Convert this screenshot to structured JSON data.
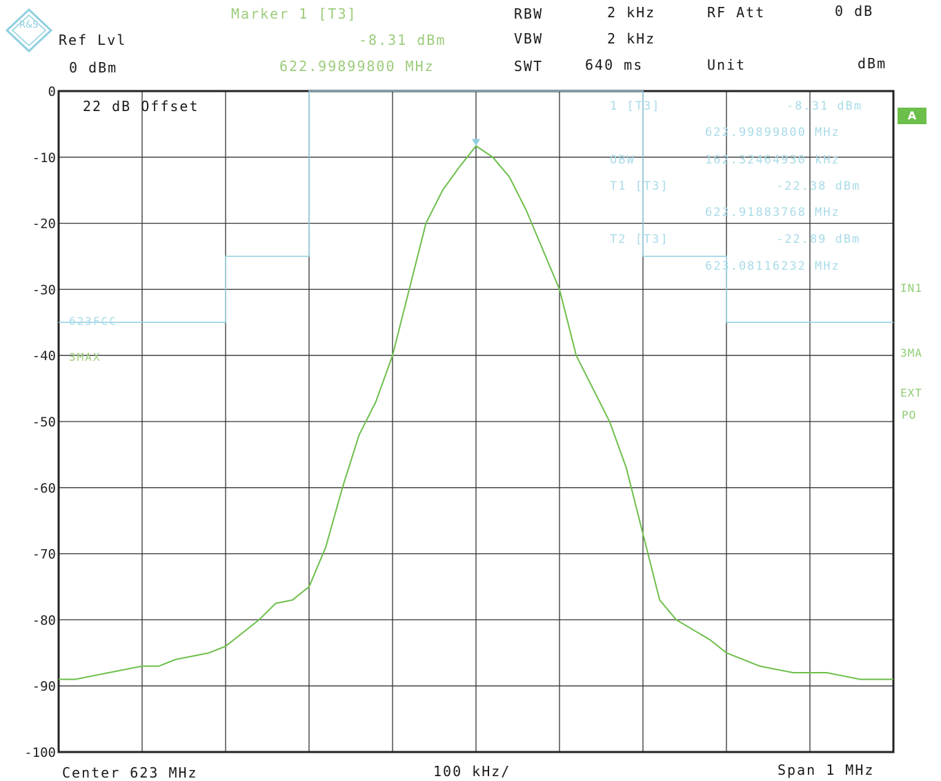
{
  "header": {
    "marker_label": "Marker 1 [T3]",
    "marker_level": "-8.31 dBm",
    "marker_freq": "622.99899800 MHz",
    "ref_lvl_label": "Ref Lvl",
    "ref_lvl_value": "0 dBm",
    "rbw_label": "RBW",
    "rbw_value": "2 kHz",
    "vbw_label": "VBW",
    "vbw_value": "2 kHz",
    "swt_label": "SWT",
    "swt_value": "640 ms",
    "rfatt_label": "RF Att",
    "rfatt_value": "0 dB",
    "unit_label": "Unit",
    "unit_value": "dBm"
  },
  "logo": {
    "letters": "R&S"
  },
  "plot": {
    "offset_text": "22 dB Offset",
    "limit_label": "623FCC",
    "trace_label": "3MAX",
    "marker_info": {
      "m1_label": "1 [T3]",
      "m1_value": "-8.31 dBm",
      "m1_freq": "622.99899800 MHz",
      "obw_label": "OBW",
      "obw_value": "162.32464930 kHz",
      "t1_label": "T1 [T3]",
      "t1_value": "-22.38 dBm",
      "t1_freq": "622.91883768 MHz",
      "t2_label": "T2 [T3]",
      "t2_value": "-22.89 dBm",
      "t2_freq": "623.08116232 MHz"
    },
    "badge": "A",
    "side_labels": [
      "IN1",
      "3MA",
      "EXT",
      "PO"
    ]
  },
  "footer": {
    "center": "Center 623 MHz",
    "div": "100 kHz/",
    "span": "Span 1 MHz"
  },
  "colors": {
    "trace": "#6cbf4a",
    "limit": "#8fcfe0",
    "grid": "#333333"
  },
  "chart_data": {
    "type": "line",
    "title": "",
    "xlabel": "",
    "ylabel": "",
    "xlim": [
      622.5,
      623.5
    ],
    "ylim": [
      -100,
      0
    ],
    "yticks": [
      0,
      -10,
      -20,
      -30,
      -40,
      -50,
      -60,
      -70,
      -80,
      -90,
      -100
    ],
    "grid": true,
    "series": [
      {
        "name": "3MAX",
        "x": [
          622.5,
          622.52,
          622.54,
          622.56,
          622.58,
          622.6,
          622.62,
          622.64,
          622.66,
          622.68,
          622.7,
          622.72,
          622.74,
          622.76,
          622.78,
          622.8,
          622.82,
          622.84,
          622.86,
          622.88,
          622.9,
          622.92,
          622.94,
          622.96,
          622.98,
          623.0,
          623.02,
          623.04,
          623.06,
          623.08,
          623.1,
          623.12,
          623.14,
          623.16,
          623.18,
          623.2,
          623.22,
          623.24,
          623.26,
          623.28,
          623.3,
          623.32,
          623.34,
          623.36,
          623.38,
          623.4,
          623.42,
          623.44,
          623.46,
          623.48,
          623.5
        ],
        "y": [
          -89,
          -89,
          -88.5,
          -88,
          -87.5,
          -87,
          -87,
          -86,
          -85.5,
          -85,
          -84,
          -82,
          -80,
          -77.5,
          -77,
          -75,
          -69,
          -60,
          -52,
          -47,
          -40,
          -30,
          -20,
          -15,
          -11.5,
          -8.3,
          -10,
          -13,
          -18,
          -24,
          -30,
          -40,
          -45,
          -50,
          -57,
          -67,
          -77,
          -80,
          -81.5,
          -83,
          -85,
          -86,
          -87,
          -87.5,
          -88,
          -88,
          -88,
          -88.5,
          -89,
          -89,
          -89
        ]
      },
      {
        "name": "623FCC",
        "x": [
          622.5,
          622.7,
          622.7,
          622.8,
          622.8,
          623.2,
          623.2,
          623.3,
          623.3,
          623.5
        ],
        "y": [
          -35,
          -35,
          -25,
          -25,
          0,
          0,
          -25,
          -25,
          -35,
          -35
        ]
      }
    ]
  }
}
